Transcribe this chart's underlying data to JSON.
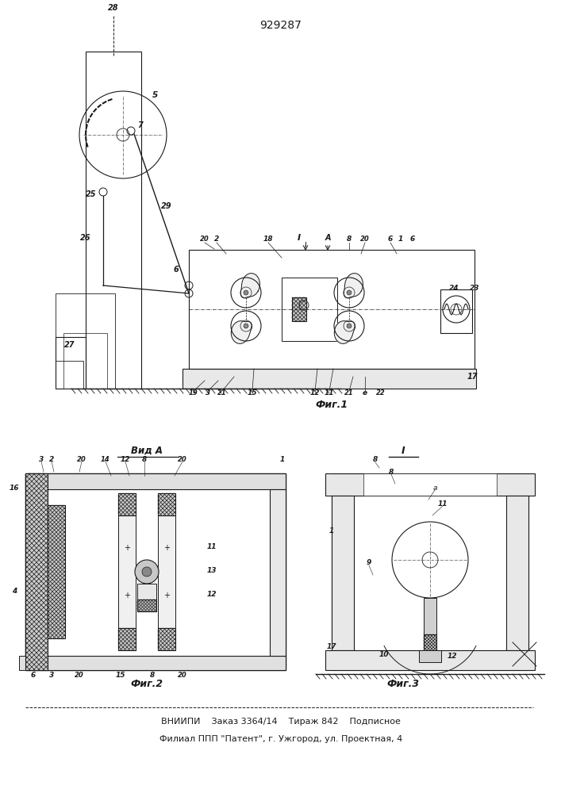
{
  "patent_number": "929287",
  "fig1_caption": "Фиг.1",
  "fig2_caption": "Фиг.2",
  "fig3_caption": "Фиг.3",
  "vid_a_label": "Вид А",
  "footer_line1": "ВНИИПИ    Заказ 3364/14    Тираж 842    Подписное",
  "footer_line2": "Филиал ППП \"Патент\", г. Ужгород, ул. Проектная, 4",
  "lc": "#1a1a1a",
  "fig_w": 7.07,
  "fig_h": 10.0
}
